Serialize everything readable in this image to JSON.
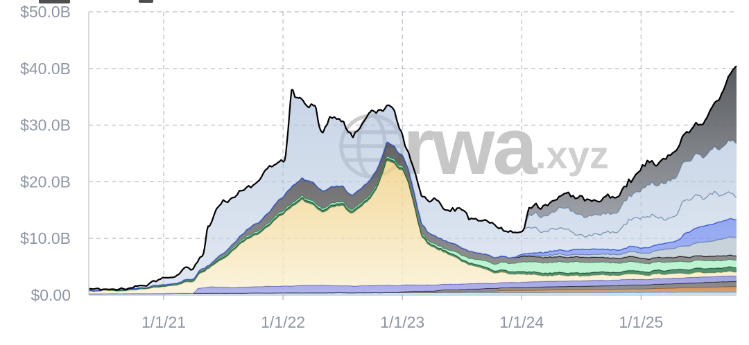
{
  "watermark": {
    "brand": "rwa",
    "suffix": ".xyz",
    "color": "#c7c7c7",
    "suffix_color": "#cfcfcf",
    "globe_icon": "globe-wireframe"
  },
  "axis": {
    "label_color": "#8e95a5",
    "line_color": "#c9cdd6",
    "grid_color": "#a7adba"
  },
  "chart_data": {
    "type": "area",
    "stacked": true,
    "grid": "dashed-both-axes",
    "legend_position": "none",
    "title": "",
    "xlabel": "",
    "ylabel": "",
    "x_range_years": [
      2020.372,
      2025.8
    ],
    "ylim": [
      0,
      50
    ],
    "y_ticks": [
      {
        "label": "$50.0B",
        "value": 50
      },
      {
        "label": "$40.0B",
        "value": 40
      },
      {
        "label": "$30.0B",
        "value": 30
      },
      {
        "label": "$20.0B",
        "value": 20
      },
      {
        "label": "$10.0B",
        "value": 10
      },
      {
        "label": "$0.00",
        "value": 0
      }
    ],
    "x_ticks": [
      {
        "label": "1/1/21",
        "t": 2021
      },
      {
        "label": "1/1/22",
        "t": 2022
      },
      {
        "label": "1/1/23",
        "t": 2023
      },
      {
        "label": "1/1/24",
        "t": 2024
      },
      {
        "label": "1/1/25",
        "t": 2025
      }
    ],
    "series_note": "no legend shown in image; series named by color; values in $B; keyframes [yearFraction, value]",
    "series": [
      {
        "name": "light-blue-base",
        "fill": "#aed9f5",
        "fill2": "#cfeafc",
        "opacity": 0.9,
        "stroke": "#3f86c9",
        "sw": 1.2,
        "noise": 0.015,
        "k": [
          [
            2020.372,
            0.25
          ],
          [
            2021,
            0.3
          ],
          [
            2022,
            0.4
          ],
          [
            2023,
            0.45
          ],
          [
            2024,
            0.45
          ],
          [
            2025,
            0.5
          ],
          [
            2025.8,
            0.55
          ]
        ]
      },
      {
        "name": "orange",
        "fill": "#c08048",
        "fill2": "#d89c66",
        "opacity": 0.85,
        "stroke": "#7a4a1e",
        "sw": 1,
        "noise": 0.02,
        "k": [
          [
            2020.372,
            0
          ],
          [
            2023.25,
            0
          ],
          [
            2023.32,
            0.15
          ],
          [
            2023.6,
            0.25
          ],
          [
            2024,
            0.4
          ],
          [
            2024.5,
            0.5
          ],
          [
            2025,
            0.6
          ],
          [
            2025.4,
            0.8
          ],
          [
            2025.8,
            1.0
          ]
        ]
      },
      {
        "name": "black-band",
        "fill": "#767676",
        "fill2": "#8d8d8d",
        "opacity": 0.9,
        "stroke": "#0a0a0a",
        "sw": 1.2,
        "noise": 0.02,
        "k": [
          [
            2020.372,
            0
          ],
          [
            2022.95,
            0
          ],
          [
            2023.02,
            0.2
          ],
          [
            2023.5,
            0.35
          ],
          [
            2024,
            0.55
          ],
          [
            2024.5,
            0.6
          ],
          [
            2025,
            0.7
          ],
          [
            2025.8,
            0.9
          ]
        ]
      },
      {
        "name": "purple",
        "fill": "#8f92dd",
        "fill2": "#a7aae8",
        "opacity": 0.85,
        "stroke": "#4c4cb0",
        "sw": 1.2,
        "noise": 0.04,
        "k": [
          [
            2020.372,
            0
          ],
          [
            2021.25,
            0
          ],
          [
            2021.29,
            0.9
          ],
          [
            2021.4,
            1.1
          ],
          [
            2021.55,
            1.0
          ],
          [
            2021.7,
            1.1
          ],
          [
            2022,
            1.2
          ],
          [
            2022.3,
            1.35
          ],
          [
            2022.6,
            1.2
          ],
          [
            2022.87,
            1.3
          ],
          [
            2023.1,
            1.1
          ],
          [
            2023.5,
            0.95
          ],
          [
            2024,
            0.9
          ],
          [
            2024.5,
            1.0
          ],
          [
            2025,
            0.95
          ],
          [
            2025.5,
            1.0
          ],
          [
            2025.8,
            0.95
          ]
        ]
      },
      {
        "name": "yellow-gold",
        "fill": "#efcf7f",
        "fill2": "#faf0d4",
        "opacity": 0.78,
        "stroke": "#b9a05e",
        "sw": 1,
        "noise": 0.15,
        "k": [
          [
            2020.372,
            0.45
          ],
          [
            2020.7,
            0.6
          ],
          [
            2021,
            1.3
          ],
          [
            2021.15,
            1.7
          ],
          [
            2021.25,
            2.1
          ],
          [
            2021.4,
            3.3
          ],
          [
            2021.5,
            5.0
          ],
          [
            2021.6,
            6.8
          ],
          [
            2021.7,
            8.2
          ],
          [
            2021.8,
            9.5
          ],
          [
            2021.9,
            10.8
          ],
          [
            2022,
            12.8
          ],
          [
            2022.1,
            14.2
          ],
          [
            2022.17,
            15.0
          ],
          [
            2022.25,
            14.2
          ],
          [
            2022.32,
            13.0
          ],
          [
            2022.42,
            13.9
          ],
          [
            2022.5,
            14.2
          ],
          [
            2022.57,
            13.1
          ],
          [
            2022.65,
            13.9
          ],
          [
            2022.73,
            15.3
          ],
          [
            2022.8,
            18.0
          ],
          [
            2022.87,
            22.3
          ],
          [
            2022.93,
            21.8
          ],
          [
            2023.0,
            20.5
          ],
          [
            2023.05,
            18.0
          ],
          [
            2023.1,
            13.5
          ],
          [
            2023.16,
            8.5
          ],
          [
            2023.22,
            7.2
          ],
          [
            2023.3,
            5.9
          ],
          [
            2023.45,
            4.5
          ],
          [
            2023.6,
            3.0
          ],
          [
            2023.8,
            1.9
          ],
          [
            2023.95,
            1.4
          ],
          [
            2024.2,
            1.1
          ],
          [
            2024.5,
            0.9
          ],
          [
            2025,
            0.8
          ],
          [
            2025.8,
            0.7
          ]
        ]
      },
      {
        "name": "dark-green",
        "fill": "#2e6e4d",
        "fill2": "#3d8560",
        "opacity": 0.88,
        "stroke": "#0e3d24",
        "sw": 1.5,
        "noise": 0.02,
        "k": [
          [
            2020.372,
            0.1
          ],
          [
            2021,
            0.15
          ],
          [
            2021.5,
            0.3
          ],
          [
            2022,
            0.35
          ],
          [
            2022.87,
            0.4
          ],
          [
            2023.2,
            0.35
          ],
          [
            2023.6,
            0.35
          ],
          [
            2024,
            0.45
          ],
          [
            2024.5,
            0.5
          ],
          [
            2025,
            0.6
          ],
          [
            2025.5,
            0.75
          ],
          [
            2025.8,
            0.8
          ]
        ]
      },
      {
        "name": "mint-green",
        "fill": "#90e9b3",
        "fill2": "#b4f2cc",
        "opacity": 0.8,
        "stroke": "#249a55",
        "sw": 1.2,
        "noise": 0.05,
        "k": [
          [
            2020.372,
            0
          ],
          [
            2021.4,
            0.05
          ],
          [
            2021.5,
            0.25
          ],
          [
            2022,
            0.3
          ],
          [
            2022.87,
            0.35
          ],
          [
            2023.1,
            0.3
          ],
          [
            2023.35,
            0.4
          ],
          [
            2023.5,
            0.7
          ],
          [
            2023.7,
            1.1
          ],
          [
            2023.9,
            1.5
          ],
          [
            2024.1,
            1.8
          ],
          [
            2024.4,
            1.95
          ],
          [
            2024.6,
            1.8
          ],
          [
            2024.9,
            1.55
          ],
          [
            2025.1,
            1.5
          ],
          [
            2025.4,
            1.4
          ],
          [
            2025.8,
            1.3
          ]
        ]
      },
      {
        "name": "dark-gray-band",
        "fill": "#4f4f4f",
        "fill2": "#8a8a8a",
        "opacity": 0.88,
        "stroke": "#000000",
        "sw": 1.5,
        "noise": 0.07,
        "k": [
          [
            2020.372,
            0.05
          ],
          [
            2021,
            0.15
          ],
          [
            2021.3,
            0.25
          ],
          [
            2021.5,
            0.5
          ],
          [
            2021.65,
            0.9
          ],
          [
            2021.8,
            1.5
          ],
          [
            2021.95,
            2.2
          ],
          [
            2022.1,
            3.0
          ],
          [
            2022.25,
            3.3
          ],
          [
            2022.4,
            2.9
          ],
          [
            2022.55,
            2.6
          ],
          [
            2022.7,
            2.5
          ],
          [
            2022.87,
            2.5
          ],
          [
            2023.0,
            2.0
          ],
          [
            2023.1,
            1.8
          ],
          [
            2023.2,
            1.5
          ],
          [
            2023.4,
            1.3
          ],
          [
            2023.6,
            1.2
          ],
          [
            2023.9,
            1.0
          ],
          [
            2024.3,
            0.9
          ],
          [
            2024.8,
            0.85
          ],
          [
            2025.3,
            0.8
          ],
          [
            2025.8,
            0.8
          ]
        ]
      },
      {
        "name": "slate-gray",
        "fill": "#a3b4c2",
        "fill2": "#bcc9d4",
        "opacity": 0.75,
        "stroke": "#5f7585",
        "sw": 1.2,
        "noise": 0.05,
        "k": [
          [
            2020.372,
            0
          ],
          [
            2023.95,
            0
          ],
          [
            2024.05,
            0.2
          ],
          [
            2024.3,
            0.4
          ],
          [
            2024.6,
            0.5
          ],
          [
            2025,
            0.9
          ],
          [
            2025.3,
            1.7
          ],
          [
            2025.55,
            2.6
          ],
          [
            2025.8,
            3.3
          ]
        ]
      },
      {
        "name": "bright-blue",
        "fill": "#5f7ceb",
        "fill2": "#8da2f2",
        "opacity": 0.78,
        "stroke": "#1f41cc",
        "sw": 1.5,
        "noise": 0.06,
        "k": [
          [
            2020.372,
            0
          ],
          [
            2023.9,
            0
          ],
          [
            2023.97,
            0.2
          ],
          [
            2024.15,
            0.5
          ],
          [
            2024.4,
            0.85
          ],
          [
            2024.6,
            0.9
          ],
          [
            2024.8,
            0.8
          ],
          [
            2025,
            0.9
          ],
          [
            2025.2,
            1.1
          ],
          [
            2025.33,
            1.3
          ],
          [
            2025.36,
            2.2
          ],
          [
            2025.5,
            2.7
          ],
          [
            2025.65,
            3.1
          ],
          [
            2025.8,
            3.2
          ]
        ]
      },
      {
        "name": "steel-blue",
        "fill": "#a3b9d6",
        "fill2": "#ccd8e9",
        "opacity": 0.6,
        "stroke": "#66809f",
        "sw": 1.3,
        "noise": 0.35,
        "k": [
          [
            2020.372,
            0.1
          ],
          [
            2020.7,
            0.2
          ],
          [
            2021,
            1.0
          ],
          [
            2021.1,
            1.5
          ],
          [
            2021.17,
            2.2
          ],
          [
            2021.24,
            1.6
          ],
          [
            2021.3,
            2.2
          ],
          [
            2021.33,
            2.6
          ],
          [
            2021.37,
            7.6
          ],
          [
            2021.45,
            8.4
          ],
          [
            2021.5,
            9.0
          ],
          [
            2021.58,
            8.1
          ],
          [
            2021.65,
            7.9
          ],
          [
            2021.8,
            7.6
          ],
          [
            2021.95,
            7.5
          ],
          [
            2022.02,
            6.0
          ],
          [
            2022.07,
            16.0
          ],
          [
            2022.13,
            14.8
          ],
          [
            2022.2,
            14.2
          ],
          [
            2022.27,
            13.4
          ],
          [
            2022.31,
            10.6
          ],
          [
            2022.38,
            11.8
          ],
          [
            2022.45,
            11.4
          ],
          [
            2022.52,
            10.4
          ],
          [
            2022.58,
            10.2
          ],
          [
            2022.65,
            11.0
          ],
          [
            2022.72,
            11.8
          ],
          [
            2022.8,
            10.0
          ],
          [
            2022.87,
            6.2
          ],
          [
            2022.92,
            6.0
          ],
          [
            2022.97,
            4.5
          ],
          [
            2023.02,
            2.4
          ],
          [
            2023.07,
            3.0
          ],
          [
            2023.12,
            4.2
          ],
          [
            2023.18,
            5.3
          ],
          [
            2023.25,
            6.1
          ],
          [
            2023.4,
            5.9
          ],
          [
            2023.55,
            6.2
          ],
          [
            2023.7,
            5.6
          ],
          [
            2023.85,
            4.7
          ],
          [
            2023.95,
            4.1
          ],
          [
            2024.1,
            3.9
          ],
          [
            2024.3,
            3.8
          ],
          [
            2024.5,
            2.7
          ],
          [
            2024.65,
            2.4
          ],
          [
            2024.8,
            3.2
          ],
          [
            2024.95,
            4.6
          ],
          [
            2025.1,
            5.5
          ],
          [
            2025.2,
            4.6
          ],
          [
            2025.3,
            4.4
          ],
          [
            2025.34,
            5.6
          ],
          [
            2025.45,
            5.4
          ],
          [
            2025.55,
            5.2
          ],
          [
            2025.7,
            4.8
          ],
          [
            2025.8,
            4.5
          ]
        ]
      },
      {
        "name": "blue-gray",
        "fill": "#9db3d2",
        "fill2": "#c4d2e6",
        "opacity": 0.58,
        "stroke": "#7796bd",
        "sw": 1.5,
        "noise": 0.2,
        "k": [
          [
            2020.372,
            0
          ],
          [
            2024.02,
            0
          ],
          [
            2024.06,
            2.1
          ],
          [
            2024.15,
            2.6
          ],
          [
            2024.3,
            3.3
          ],
          [
            2024.45,
            3.5
          ],
          [
            2024.6,
            3.2
          ],
          [
            2024.75,
            3.4
          ],
          [
            2024.9,
            4.3
          ],
          [
            2025.0,
            5.2
          ],
          [
            2025.1,
            5.5
          ],
          [
            2025.25,
            6.5
          ],
          [
            2025.4,
            7.0
          ],
          [
            2025.55,
            7.5
          ],
          [
            2025.7,
            8.8
          ],
          [
            2025.8,
            9.8
          ]
        ]
      },
      {
        "name": "top-dark-gray",
        "fill": "#33373d",
        "fill2": "#b0b6be",
        "opacity": 0.82,
        "stroke": "#000000",
        "sw": 2.2,
        "noise": 0.3,
        "k": [
          [
            2020.372,
            0
          ],
          [
            2024.02,
            0
          ],
          [
            2024.06,
            1.2
          ],
          [
            2024.15,
            1.5
          ],
          [
            2024.25,
            1.9
          ],
          [
            2024.35,
            2.3
          ],
          [
            2024.5,
            3.0
          ],
          [
            2024.6,
            2.7
          ],
          [
            2024.7,
            2.9
          ],
          [
            2024.8,
            2.5
          ],
          [
            2024.88,
            2.8
          ],
          [
            2024.94,
            3.3
          ],
          [
            2025.0,
            4.1
          ],
          [
            2025.05,
            3.8
          ],
          [
            2025.12,
            3.7
          ],
          [
            2025.2,
            4.0
          ],
          [
            2025.3,
            4.6
          ],
          [
            2025.4,
            5.0
          ],
          [
            2025.5,
            5.4
          ],
          [
            2025.6,
            7.0
          ],
          [
            2025.68,
            9.3
          ],
          [
            2025.74,
            11.8
          ],
          [
            2025.8,
            14.3
          ]
        ]
      }
    ]
  }
}
